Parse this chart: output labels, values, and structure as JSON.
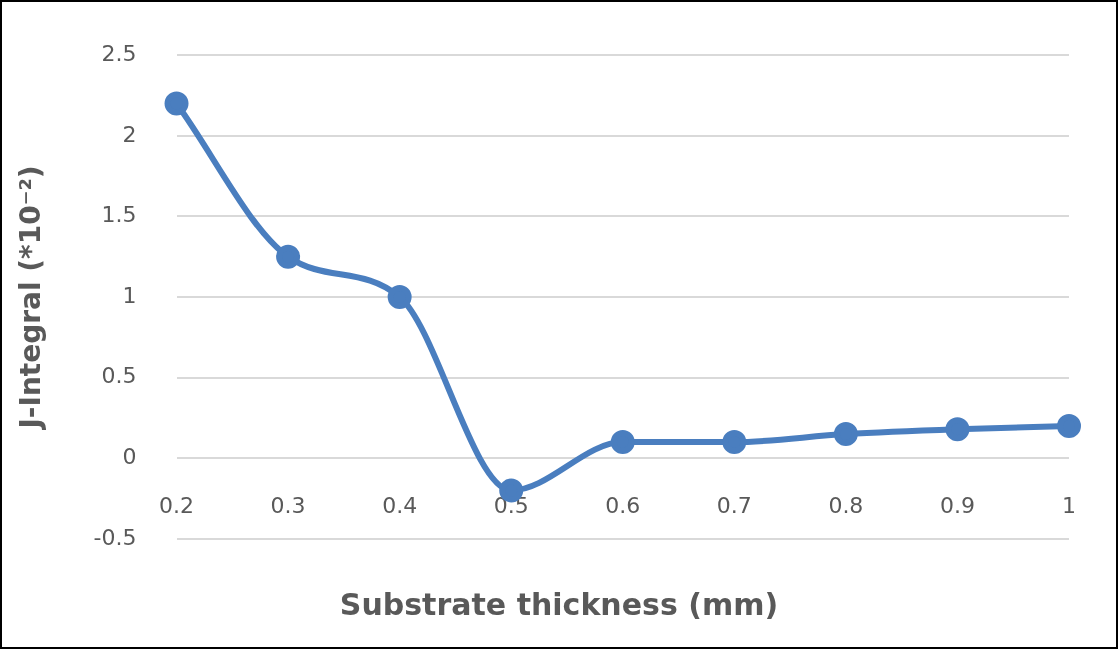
{
  "chart_data": {
    "type": "line",
    "xlabel": "Substrate thickness (mm)",
    "ylabel": "J-Integral (*10⁻²)",
    "categories": [
      "0.2",
      "0.3",
      "0.4",
      "0.5",
      "0.6",
      "0.7",
      "0.8",
      "0.9",
      "1"
    ],
    "series": [
      {
        "color": "#4a7ebf",
        "values": [
          2.2,
          1.25,
          1.0,
          -0.2,
          0.1,
          0.1,
          0.15,
          0.18,
          0.2
        ]
      }
    ],
    "ylim": [
      -0.5,
      2.5
    ],
    "yticks": [
      -0.5,
      0,
      0.5,
      1,
      1.5,
      2,
      2.5
    ],
    "grid": "y",
    "legend": false,
    "marker": "circle",
    "line_style": "solid"
  }
}
